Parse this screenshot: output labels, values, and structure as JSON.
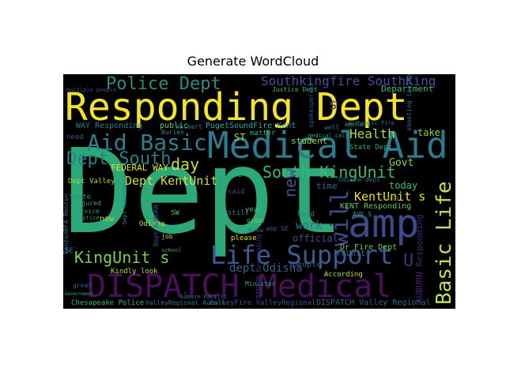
{
  "chart_data": {
    "type": "wordcloud",
    "title": "Generate WordCloud",
    "background": "#000000",
    "words": [
      {
        "text": "Dept",
        "color": "#2ca978"
      },
      {
        "text": "Responding Dept",
        "color": "#f5e22a"
      },
      {
        "text": "Medical Aid",
        "color": "#2a7b8e"
      },
      {
        "text": "DISPATCH Medical",
        "color": "#4a0f5a"
      },
      {
        "text": "amp",
        "color": "#3d4a8a"
      },
      {
        "text": "Life Support",
        "color": "#3b5a8f"
      },
      {
        "text": "Basic Life",
        "color": "#bde050"
      },
      {
        "text": "Aid Basic",
        "color": "#2e7f8e"
      },
      {
        "text": "Police Dept",
        "color": "#2d8c7f"
      },
      {
        "text": "Southkingfire SouthKing",
        "color": "#5048a0"
      },
      {
        "text": "South KingUnit",
        "color": "#3fb578"
      },
      {
        "text": "Dept South",
        "color": "#27818a"
      },
      {
        "text": "KingUnit s",
        "color": "#7bd052"
      },
      {
        "text": "day",
        "color": "#c9de3a"
      },
      {
        "text": "Dept KentUnit",
        "color": "#d8e032"
      },
      {
        "text": "Health",
        "color": "#a8db4a"
      },
      {
        "text": "KentUnit s",
        "color": "#f0e020"
      },
      {
        "text": "work",
        "color": "#30708e"
      },
      {
        "text": "new",
        "color": "#3a528b"
      },
      {
        "text": "will",
        "color": "#414487"
      },
      {
        "text": "dept Odisha",
        "color": "#35608d"
      },
      {
        "text": "s",
        "color": "#3e4c8a"
      },
      {
        "text": "U",
        "color": "#46317e"
      },
      {
        "text": "FEDERAL WAY",
        "color": "#e3e418"
      },
      {
        "text": "Department",
        "color": "#3ebc74"
      },
      {
        "text": "WAY Responding",
        "color": "#27828e"
      },
      {
        "text": "public",
        "color": "#6ccd5a"
      },
      {
        "text": "PugetSoundFire Kent",
        "color": "#2fa6a0"
      },
      {
        "text": "ST",
        "color": "#a0da39"
      },
      {
        "text": "student",
        "color": "#9ad83e"
      },
      {
        "text": "State Dept",
        "color": "#25ab82"
      },
      {
        "text": "Govt",
        "color": "#8fd744"
      },
      {
        "text": "take",
        "color": "#8bd646"
      },
      {
        "text": "time",
        "color": "#31678e"
      },
      {
        "text": "today",
        "color": "#44bf70"
      },
      {
        "text": "Odisha dept",
        "color": "#2e6e8e"
      },
      {
        "text": "KENT Responding",
        "color": "#5ec962"
      },
      {
        "text": "official",
        "color": "#3b528b"
      },
      {
        "text": "people",
        "color": "#38588c"
      },
      {
        "text": "Dr Fire Dept",
        "color": "#6fcf57"
      },
      {
        "text": "FAUnit",
        "color": "#2a788e"
      },
      {
        "text": "AUBURN Responding",
        "color": "#482173"
      },
      {
        "text": "Chesapeake Police",
        "color": "#31b57b"
      },
      {
        "text": "ValleyRegional Auburn",
        "color": "#2c728e"
      },
      {
        "text": "ValleyFire ValleyRegional",
        "color": "#3c4f8a"
      },
      {
        "text": "DISPATCH Valley Regional",
        "color": "#33638d"
      },
      {
        "text": "SE",
        "color": "#26828e"
      },
      {
        "text": "now",
        "color": "#b5de2b"
      },
      {
        "text": "Justice Dept",
        "color": "#38b977"
      },
      {
        "text": "matter",
        "color": "#2fb47c"
      },
      {
        "text": "well",
        "color": "#2a788e"
      },
      {
        "text": "need",
        "color": "#3a548c"
      },
      {
        "text": "State",
        "color": "#21918c"
      },
      {
        "text": "injured",
        "color": "#29af7f"
      },
      {
        "text": "Service",
        "color": "#1f9e89"
      },
      {
        "text": "Odisha",
        "color": "#c0df25"
      },
      {
        "text": "job",
        "color": "#addc30"
      },
      {
        "text": "please",
        "color": "#dde318"
      },
      {
        "text": "According",
        "color": "#c2df23"
      },
      {
        "text": "Kindly look",
        "color": "#b8de29"
      },
      {
        "text": "year",
        "color": "#3dbc74"
      },
      {
        "text": "order",
        "color": "#6ece58"
      },
      {
        "text": "know",
        "color": "#2e6f8e"
      },
      {
        "text": "said",
        "color": "#3f4788"
      },
      {
        "text": "head",
        "color": "#23898e"
      },
      {
        "text": "still",
        "color": "#25848e"
      },
      {
        "text": "one",
        "color": "#27ad81"
      },
      {
        "text": "Minister",
        "color": "#20a386"
      },
      {
        "text": "school",
        "color": "#21a685"
      },
      {
        "text": "great",
        "color": "#365c8d"
      },
      {
        "text": "AVE S",
        "color": "#1fa188"
      },
      {
        "text": "shooting inside",
        "color": "#2c728e"
      },
      {
        "text": "RentonRFA Renton",
        "color": "#2e6d8e"
      },
      {
        "text": "Dept RentonUnit",
        "color": "#287c8e"
      },
      {
        "text": "amp SE",
        "color": "#3b528b"
      },
      {
        "text": "RENTON Responding",
        "color": "#46327e"
      },
      {
        "text": "Auburn Pacific",
        "color": "#2b748e"
      },
      {
        "text": "Government",
        "color": "#22a884"
      },
      {
        "text": "Justice",
        "color": "#1e9b8a"
      },
      {
        "text": "multiple people",
        "color": "#3e4989"
      },
      {
        "text": "Ambulance",
        "color": "#2ab07f"
      },
      {
        "text": "t",
        "color": "#45337d"
      },
      {
        "text": "spokesperson",
        "color": "#3b528b"
      },
      {
        "text": "SW",
        "color": "#4ec36b"
      },
      {
        "text": "Walmart",
        "color": "#277f8e"
      },
      {
        "text": "Authentic Fire",
        "color": "#29798e"
      },
      {
        "text": "Dept Valley",
        "color": "#a5db36"
      },
      {
        "text": "Dept AUBURN",
        "color": "#3b528b"
      },
      {
        "text": "Burien",
        "color": "#24868e"
      },
      {
        "text": "via",
        "color": "#3c4f8a"
      },
      {
        "text": "medical call",
        "color": "#22a785"
      }
    ]
  }
}
